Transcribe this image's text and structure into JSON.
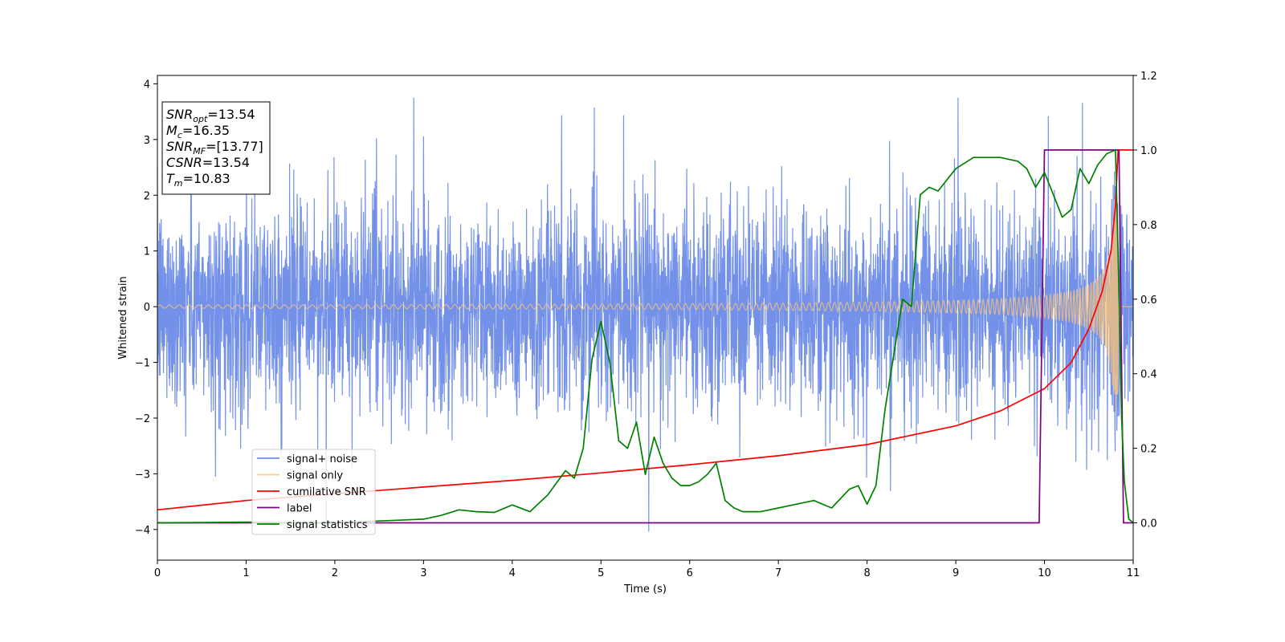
{
  "chart_data": {
    "type": "line",
    "xlabel": "Time (s)",
    "ylabel": "Whitened strain",
    "xlim": [
      0,
      11
    ],
    "ylim_left": [
      -4.55,
      4.15
    ],
    "ylim_right": [
      -0.1,
      1.2
    ],
    "x_ticks": [
      0,
      1,
      2,
      3,
      4,
      5,
      6,
      7,
      8,
      9,
      10,
      11
    ],
    "x_tick_labels": [
      "0",
      "1",
      "2",
      "3",
      "4",
      "5",
      "6",
      "7",
      "8",
      "9",
      "10",
      "11"
    ],
    "y_left_ticks": [
      -4,
      -3,
      -2,
      -1,
      0,
      1,
      2,
      3,
      4
    ],
    "y_left_tick_labels": [
      "−4",
      "−3",
      "−2",
      "−1",
      "0",
      "1",
      "2",
      "3",
      "4"
    ],
    "y_right_ticks": [
      0.0,
      0.2,
      0.4,
      0.6,
      0.8,
      1.0,
      1.2
    ],
    "y_right_tick_labels": [
      "0.0",
      "0.2",
      "0.4",
      "0.6",
      "0.8",
      "1.0",
      "1.2"
    ],
    "grid": false,
    "legend_position": "lower-left",
    "annotation": {
      "lines": [
        {
          "base": "SNR",
          "sub": "opt",
          "value": "=13.54"
        },
        {
          "base": "M",
          "sub": "c",
          "value": "=16.35"
        },
        {
          "base": "SNR",
          "sub": "MF",
          "value": "=[13.77]"
        },
        {
          "base": "CSNR",
          "sub": "",
          "value": "=13.54"
        },
        {
          "base": "T",
          "sub": "m",
          "value": "=10.83"
        }
      ]
    },
    "series": [
      {
        "name": "signal+ noise",
        "axis": "left",
        "color": "#6b8be8",
        "noise_std": 0.9,
        "x_range": [
          0,
          11
        ],
        "peak_values": [
          3.75,
          -4.15,
          3.65,
          -3.6
        ]
      },
      {
        "name": "signal only",
        "axis": "left",
        "color": "#f5c27a",
        "description_values": {
          "amplitude_start": 0.03,
          "amplitude_end": 2.0,
          "merger_time": 10.83
        }
      },
      {
        "name": "cumilative SNR",
        "axis": "right",
        "color": "#ff0000",
        "x": [
          0,
          1,
          2,
          3,
          4,
          5,
          6,
          7,
          8,
          9,
          9.5,
          10,
          10.3,
          10.5,
          10.65,
          10.75,
          10.8,
          10.83,
          11
        ],
        "y": [
          0.035,
          0.06,
          0.078,
          0.096,
          0.114,
          0.134,
          0.156,
          0.18,
          0.21,
          0.26,
          0.3,
          0.36,
          0.43,
          0.52,
          0.62,
          0.73,
          0.85,
          1.0,
          1.0
        ]
      },
      {
        "name": "label",
        "axis": "right",
        "color": "#800080",
        "x": [
          0,
          9.94,
          10.0,
          10.84,
          10.89,
          11
        ],
        "y": [
          0.0,
          0.0,
          1.0,
          1.0,
          0.0,
          0.0
        ]
      },
      {
        "name": "signal statistics",
        "axis": "right",
        "color": "#008000",
        "x": [
          0,
          0.5,
          1,
          1.5,
          2,
          2.5,
          3,
          3.2,
          3.4,
          3.6,
          3.8,
          4.0,
          4.2,
          4.4,
          4.6,
          4.7,
          4.8,
          4.9,
          5.0,
          5.1,
          5.2,
          5.3,
          5.4,
          5.5,
          5.6,
          5.7,
          5.8,
          5.9,
          6.0,
          6.1,
          6.2,
          6.3,
          6.4,
          6.5,
          6.6,
          6.8,
          7.0,
          7.2,
          7.4,
          7.6,
          7.8,
          7.9,
          8.0,
          8.1,
          8.2,
          8.3,
          8.4,
          8.5,
          8.6,
          8.7,
          8.8,
          9.0,
          9.2,
          9.5,
          9.7,
          9.8,
          9.9,
          10.0,
          10.1,
          10.2,
          10.3,
          10.4,
          10.5,
          10.6,
          10.7,
          10.8,
          10.83,
          10.87,
          10.9,
          10.95,
          11.0
        ],
        "y": [
          0.0,
          0.001,
          0.002,
          0.0,
          0.0,
          0.005,
          0.01,
          0.02,
          0.035,
          0.03,
          0.028,
          0.048,
          0.03,
          0.075,
          0.14,
          0.12,
          0.2,
          0.44,
          0.54,
          0.43,
          0.22,
          0.2,
          0.27,
          0.13,
          0.23,
          0.16,
          0.12,
          0.1,
          0.1,
          0.11,
          0.13,
          0.16,
          0.06,
          0.04,
          0.03,
          0.03,
          0.04,
          0.05,
          0.06,
          0.04,
          0.09,
          0.1,
          0.05,
          0.1,
          0.3,
          0.45,
          0.6,
          0.58,
          0.88,
          0.9,
          0.89,
          0.95,
          0.98,
          0.98,
          0.97,
          0.95,
          0.9,
          0.94,
          0.88,
          0.82,
          0.84,
          0.95,
          0.91,
          0.96,
          0.99,
          1.0,
          0.72,
          0.28,
          0.11,
          0.01,
          0.0
        ]
      }
    ]
  }
}
